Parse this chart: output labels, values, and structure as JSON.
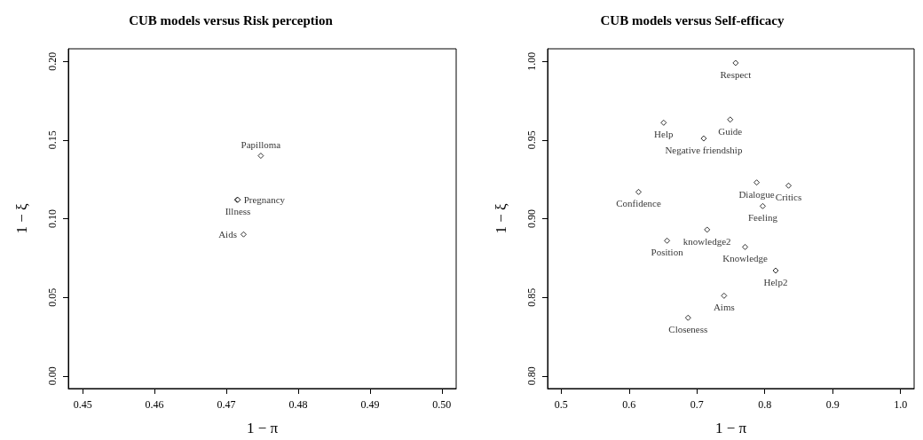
{
  "chart_data": [
    {
      "type": "scatter",
      "title": "CUB models versus Risk perception",
      "xlabel": "1 − π",
      "ylabel": "1 − ξ",
      "marker": "diamond",
      "grid": false,
      "xlim": [
        0.448,
        0.502
      ],
      "xticks": [
        0.45,
        0.46,
        0.47,
        0.48,
        0.49,
        {
          "value": 0.5,
          "label": "0.50"
        }
      ],
      "ylim": [
        -0.008,
        0.208
      ],
      "yticks": [
        {
          "value": 0,
          "label": "0.00"
        },
        0.05,
        {
          "value": 0.1,
          "label": "0.10"
        },
        0.15,
        {
          "value": 0.2,
          "label": "0.20"
        }
      ],
      "series": [
        {
          "color": "#000000",
          "x": [
            0.4748,
            0.4715,
            0.4716,
            0.4724
          ],
          "values": [
            0.14,
            0.112,
            0.112,
            0.09
          ],
          "value_labels": [
            "Papilloma",
            "Pregnancy",
            "Illness",
            "Aids"
          ]
        }
      ]
    },
    {
      "type": "scatter",
      "title": "CUB models versus Self-efficacy",
      "xlabel": "1 − π",
      "ylabel": "1 − ξ",
      "marker": "diamond",
      "grid": false,
      "xlim": [
        0.48,
        1.02
      ],
      "xticks": [
        0.5,
        0.6,
        0.7,
        0.8,
        0.9,
        {
          "value": 1,
          "label": "1.0"
        }
      ],
      "ylim": [
        0.792,
        1.008
      ],
      "yticks": [
        {
          "value": 0.8,
          "label": "0.80"
        },
        0.85,
        {
          "value": 0.9,
          "label": "0.90"
        },
        0.95,
        {
          "value": 1,
          "label": "1.00"
        }
      ],
      "series": [
        {
          "color": "#000000",
          "x": [
            0.757,
            0.651,
            0.749,
            0.71,
            0.788,
            0.835,
            0.614,
            0.797,
            0.715,
            0.656,
            0.771,
            0.816,
            0.74,
            0.687
          ],
          "values": [
            0.999,
            0.961,
            0.963,
            0.951,
            0.923,
            0.921,
            0.917,
            0.908,
            0.893,
            0.886,
            0.882,
            0.867,
            0.851,
            0.837
          ],
          "value_labels": [
            "Respect",
            "Help",
            "Guide",
            "Negative friendship",
            "Dialogue",
            "Critics",
            "Confidence",
            "Feeling",
            "knowledge2",
            "Position",
            "Knowledge",
            "Help2",
            "Aims",
            "Closeness"
          ]
        }
      ]
    }
  ]
}
